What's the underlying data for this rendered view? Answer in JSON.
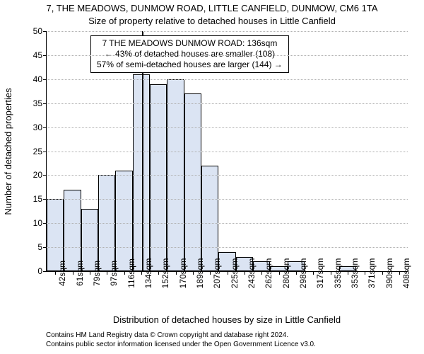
{
  "title_main": "7, THE MEADOWS, DUNMOW ROAD, LITTLE CANFIELD, DUNMOW, CM6 1TA",
  "title_sub": "Size of property relative to detached houses in Little Canfield",
  "ylabel": "Number of detached properties",
  "xlabel": "Distribution of detached houses by size in Little Canfield",
  "credits_line1": "Contains HM Land Registry data © Crown copyright and database right 2024.",
  "credits_line2": "Contains public sector information licensed under the Open Government Licence v3.0.",
  "annotation": {
    "line1": "7 THE MEADOWS DUNMOW ROAD: 136sqm",
    "line2": "← 43% of detached houses are smaller (108)",
    "line3": "57% of semi-detached houses are larger (144) →"
  },
  "chart": {
    "type": "bar",
    "ylim": [
      0,
      50
    ],
    "yticks": [
      0,
      5,
      10,
      15,
      20,
      25,
      30,
      35,
      40,
      45,
      50
    ],
    "categories": [
      "42sqm",
      "61sqm",
      "79sqm",
      "97sqm",
      "116sqm",
      "134sqm",
      "152sqm",
      "170sqm",
      "189sqm",
      "207sqm",
      "225sqm",
      "243sqm",
      "262sqm",
      "280sqm",
      "298sqm",
      "317sqm",
      "335sqm",
      "353sqm",
      "371sqm",
      "390sqm",
      "408sqm"
    ],
    "values": [
      15,
      17,
      13,
      20,
      21,
      41,
      39,
      40,
      37,
      22,
      4,
      3,
      2,
      1,
      2,
      0,
      0,
      1,
      0,
      0,
      0
    ],
    "bar_fill": "#dbe4f3",
    "bar_stroke": "#000000",
    "grid_color": "#b0b0b0",
    "background": "#ffffff",
    "ref_value_sqm": 136,
    "x_min_sqm": 33,
    "x_step_sqm": 18.4,
    "title_fontsize": 13,
    "label_fontsize": 13,
    "tick_fontsize": 12,
    "annotation_fontsize": 12
  }
}
